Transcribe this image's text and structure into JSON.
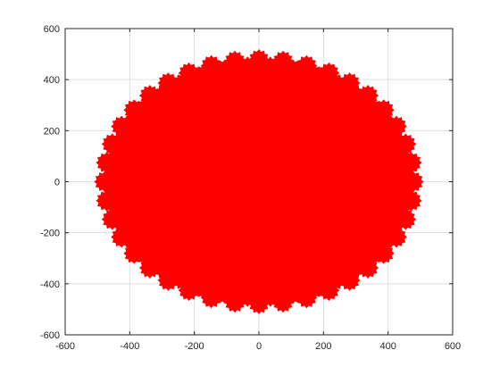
{
  "chart_data": {
    "type": "scatter",
    "title": "",
    "xlabel": "",
    "ylabel": "",
    "xlim": [
      -600,
      600
    ],
    "ylim": [
      -600,
      600
    ],
    "xticks": [
      -600,
      -400,
      -200,
      0,
      200,
      400,
      600
    ],
    "yticks": [
      -600,
      -400,
      -200,
      0,
      200,
      400,
      600
    ],
    "xtick_labels": [
      "-600",
      "-400",
      "-200",
      "0",
      "200",
      "400",
      "600"
    ],
    "ytick_labels": [
      "-600",
      "-400",
      "-200",
      "0",
      "200",
      "400",
      "600"
    ],
    "grid": true,
    "legend": "none",
    "series": [
      {
        "marker": "star",
        "color": "#ff0000",
        "shape": "filled disc of star markers",
        "center": [
          0,
          0
        ],
        "radius": 500,
        "boundary_lobes": 40
      }
    ]
  }
}
